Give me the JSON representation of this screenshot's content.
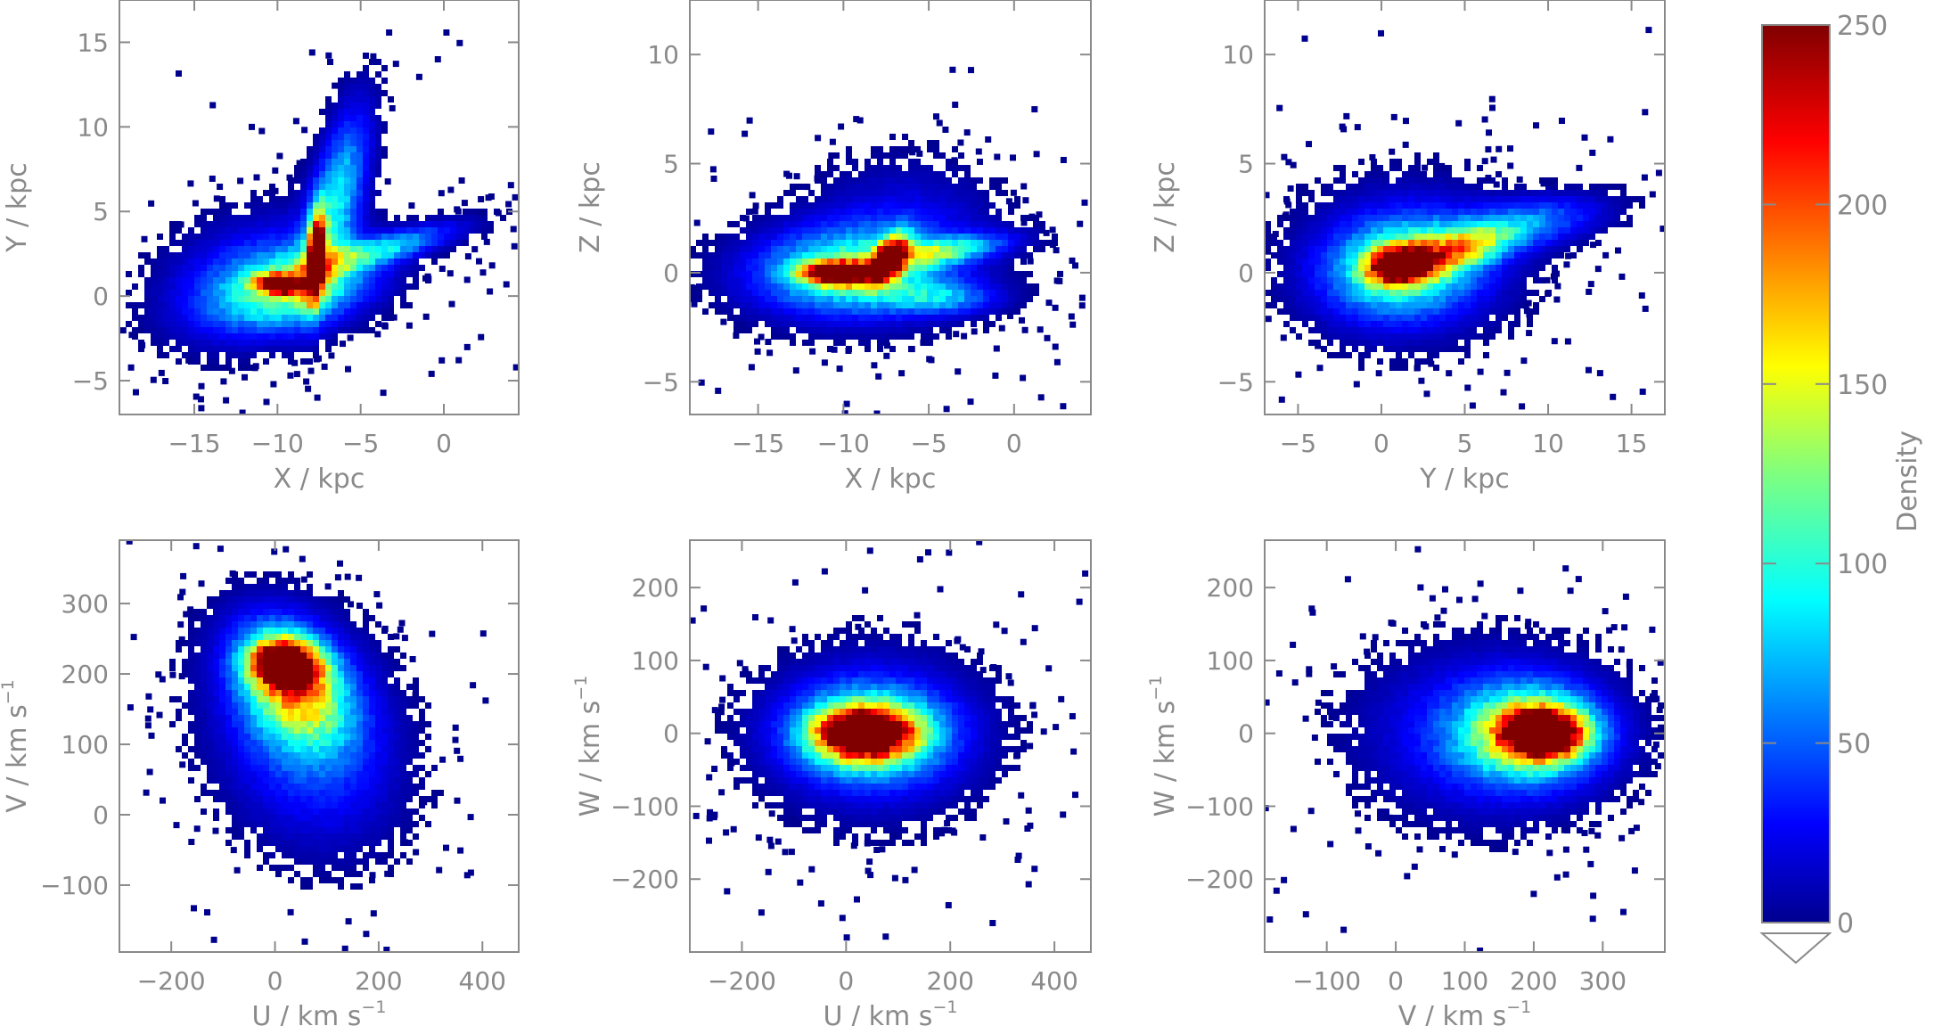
{
  "chart_data": [
    {
      "type": "heatmap",
      "id": "xy",
      "xlabel": "X / kpc",
      "ylabel": "Y / kpc",
      "xlim": [
        -19.5,
        4.5
      ],
      "ylim": [
        -7,
        17.5
      ],
      "xticks": [
        -15,
        -10,
        -5,
        0
      ],
      "yticks": [
        -5,
        0,
        5,
        10,
        15
      ],
      "xticklabels": [
        "−15",
        "−10",
        "−5",
        "0"
      ],
      "yticklabels": [
        "−5",
        "0",
        "5",
        "10",
        "15"
      ],
      "density_components": [
        {
          "x": -9.0,
          "y": 0.4,
          "sx": 3.2,
          "sy": 1.6,
          "rho": 0.35,
          "peak": 110,
          "n": 1700
        },
        {
          "x": -9.8,
          "y": 0.6,
          "sx": 0.9,
          "sy": 0.35,
          "rho": -0.2,
          "peak": 255,
          "n": 180
        },
        {
          "x": -7.7,
          "y": 2.3,
          "sx": 0.35,
          "sy": 1.7,
          "rho": 0.3,
          "peak": 255,
          "n": 220
        },
        {
          "x": -6.5,
          "y": 5.5,
          "sx": 1.3,
          "sy": 3.5,
          "rho": 0.6,
          "peak": 90,
          "n": 800
        },
        {
          "x": -4.0,
          "y": 2.6,
          "sx": 3.2,
          "sy": 1.0,
          "rho": 0.8,
          "peak": 80,
          "n": 650
        },
        {
          "x": -11.5,
          "y": 1.2,
          "sx": 3.5,
          "sy": 2.4,
          "rho": 0.3,
          "peak": 40,
          "n": 600
        }
      ]
    },
    {
      "type": "heatmap",
      "id": "xz",
      "xlabel": "X / kpc",
      "ylabel": "Z / kpc",
      "xlim": [
        -19,
        4.5
      ],
      "ylim": [
        -6.5,
        12.5
      ],
      "xticks": [
        -15,
        -10,
        -5,
        0
      ],
      "yticks": [
        -5,
        0,
        5,
        10
      ],
      "xticklabels": [
        "−15",
        "−10",
        "−5",
        "0"
      ],
      "yticklabels": [
        "−5",
        "0",
        "5",
        "10"
      ],
      "density_components": [
        {
          "x": -10.0,
          "y": 0.0,
          "sx": 3.6,
          "sy": 1.3,
          "rho": 0.05,
          "peak": 110,
          "n": 1900
        },
        {
          "x": -10.3,
          "y": -0.1,
          "sx": 1.4,
          "sy": 0.35,
          "rho": 0.0,
          "peak": 255,
          "n": 240
        },
        {
          "x": -7.4,
          "y": 0.6,
          "sx": 0.7,
          "sy": 0.7,
          "rho": 0.5,
          "peak": 255,
          "n": 140
        },
        {
          "x": -4.5,
          "y": 0.9,
          "sx": 2.6,
          "sy": 0.5,
          "rho": 0.6,
          "peak": 90,
          "n": 450
        },
        {
          "x": -4.5,
          "y": -1.2,
          "sx": 2.2,
          "sy": 0.5,
          "rho": 0.0,
          "peak": 60,
          "n": 300
        },
        {
          "x": -6.5,
          "y": 1.5,
          "sx": 3.5,
          "sy": 2.2,
          "rho": 0.0,
          "peak": 30,
          "n": 700
        }
      ]
    },
    {
      "type": "heatmap",
      "id": "yz",
      "xlabel": "Y / kpc",
      "ylabel": "Z / kpc",
      "xlim": [
        -7,
        17
      ],
      "ylim": [
        -6.5,
        12.5
      ],
      "xticks": [
        -5,
        0,
        5,
        10,
        15
      ],
      "yticks": [
        -5,
        0,
        5,
        10
      ],
      "xticklabels": [
        "−5",
        "0",
        "5",
        "10",
        "15"
      ],
      "yticklabels": [
        "−5",
        "0",
        "5",
        "10"
      ],
      "density_components": [
        {
          "x": 1.2,
          "y": 0.2,
          "sx": 3.0,
          "sy": 1.5,
          "rho": 0.1,
          "peak": 110,
          "n": 1900
        },
        {
          "x": 1.0,
          "y": 0.3,
          "sx": 1.2,
          "sy": 0.55,
          "rho": 0.1,
          "peak": 255,
          "n": 260
        },
        {
          "x": 4.5,
          "y": 1.0,
          "sx": 2.2,
          "sy": 0.7,
          "rho": 0.5,
          "peak": 110,
          "n": 350
        },
        {
          "x": 8.5,
          "y": 2.2,
          "sx": 3.0,
          "sy": 0.8,
          "rho": 0.4,
          "peak": 60,
          "n": 400
        },
        {
          "x": 1.5,
          "y": 0.5,
          "sx": 4.2,
          "sy": 2.4,
          "rho": 0.0,
          "peak": 25,
          "n": 700
        }
      ]
    },
    {
      "type": "heatmap",
      "id": "uv",
      "xlabel": "U / km s",
      "ylabel": "V / km s",
      "label_exponent": "−1",
      "xlim": [
        -300,
        470
      ],
      "ylim": [
        -195,
        390
      ],
      "xticks": [
        -200,
        0,
        200,
        400
      ],
      "yticks": [
        -100,
        0,
        100,
        200,
        300
      ],
      "xticklabels": [
        "−200",
        "0",
        "200",
        "400"
      ],
      "yticklabels": [
        "−100",
        "0",
        "100",
        "200",
        "300"
      ],
      "density_components": [
        {
          "x": 20,
          "y": 215,
          "sx": 42,
          "sy": 22,
          "rho": -0.1,
          "peak": 255,
          "n": 400
        },
        {
          "x": 35,
          "y": 185,
          "sx": 70,
          "sy": 55,
          "rho": -0.3,
          "peak": 150,
          "n": 1200
        },
        {
          "x": 60,
          "y": 110,
          "sx": 110,
          "sy": 95,
          "rho": -0.2,
          "peak": 55,
          "n": 1400
        }
      ]
    },
    {
      "type": "heatmap",
      "id": "uw",
      "xlabel": "U / km s",
      "ylabel": "W / km s",
      "label_exponent": "−1",
      "xlim": [
        -300,
        470
      ],
      "ylim": [
        -300,
        265
      ],
      "xticks": [
        -200,
        0,
        200,
        400
      ],
      "yticks": [
        -200,
        -100,
        0,
        100,
        200
      ],
      "xticklabels": [
        "−200",
        "0",
        "200",
        "400"
      ],
      "yticklabels": [
        "−200",
        "−100",
        "0",
        "100",
        "200"
      ],
      "density_components": [
        {
          "x": 30,
          "y": 0,
          "sx": 55,
          "sy": 20,
          "rho": 0.0,
          "peak": 255,
          "n": 450
        },
        {
          "x": 40,
          "y": 0,
          "sx": 90,
          "sy": 38,
          "rho": 0.0,
          "peak": 140,
          "n": 1300
        },
        {
          "x": 50,
          "y": 0,
          "sx": 130,
          "sy": 70,
          "rho": 0.0,
          "peak": 45,
          "n": 1300
        }
      ]
    },
    {
      "type": "heatmap",
      "id": "vw",
      "xlabel": "V / km s",
      "ylabel": "W / km s",
      "label_exponent": "−1",
      "xlim": [
        -190,
        390
      ],
      "ylim": [
        -300,
        265
      ],
      "xticks": [
        -100,
        0,
        100,
        200,
        300
      ],
      "yticks": [
        -200,
        -100,
        0,
        100,
        200
      ],
      "xticklabels": [
        "−100",
        "0",
        "100",
        "200",
        "300"
      ],
      "yticklabels": [
        "−200",
        "−100",
        "0",
        "100",
        "200"
      ],
      "density_components": [
        {
          "x": 210,
          "y": 0,
          "sx": 38,
          "sy": 22,
          "rho": 0.0,
          "peak": 255,
          "n": 420
        },
        {
          "x": 190,
          "y": 0,
          "sx": 65,
          "sy": 42,
          "rho": 0.0,
          "peak": 140,
          "n": 1200
        },
        {
          "x": 130,
          "y": 0,
          "sx": 110,
          "sy": 72,
          "rho": 0.0,
          "peak": 45,
          "n": 1400
        }
      ]
    }
  ],
  "colorbar": {
    "label": "Density",
    "min": 0,
    "max": 250,
    "ticks": [
      0,
      50,
      100,
      150,
      200,
      250
    ],
    "ticklabels": [
      "0",
      "50",
      "100",
      "150",
      "200",
      "250"
    ],
    "colormap": "jet",
    "under_color": "#ffffff"
  }
}
